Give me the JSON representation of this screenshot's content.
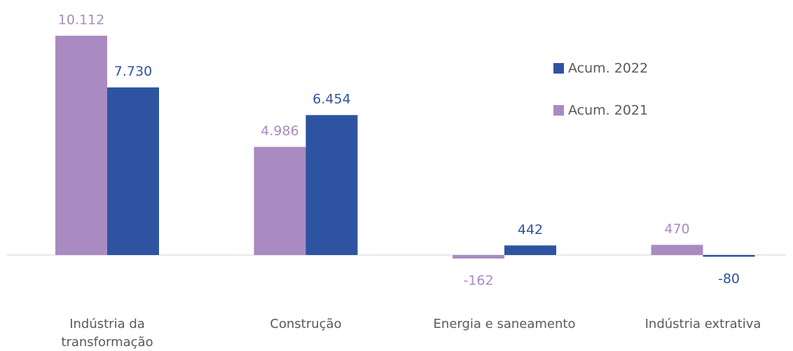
{
  "chart_data": {
    "type": "bar",
    "categories": [
      "Indústria da transformação",
      "Construção",
      "Energia e saneamento",
      "Indústria extrativa"
    ],
    "series": [
      {
        "name": "Acum. 2021",
        "color": "#a98bc1",
        "values": [
          10112,
          4986,
          -162,
          470
        ],
        "value_labels": [
          "10.112",
          "4.986",
          "-162",
          "470"
        ]
      },
      {
        "name": "Acum. 2022",
        "color": "#2e54a1",
        "values": [
          7730,
          6454,
          442,
          -80
        ],
        "value_labels": [
          "7.730",
          "6.454",
          "442",
          "-80"
        ]
      }
    ]
  }
}
